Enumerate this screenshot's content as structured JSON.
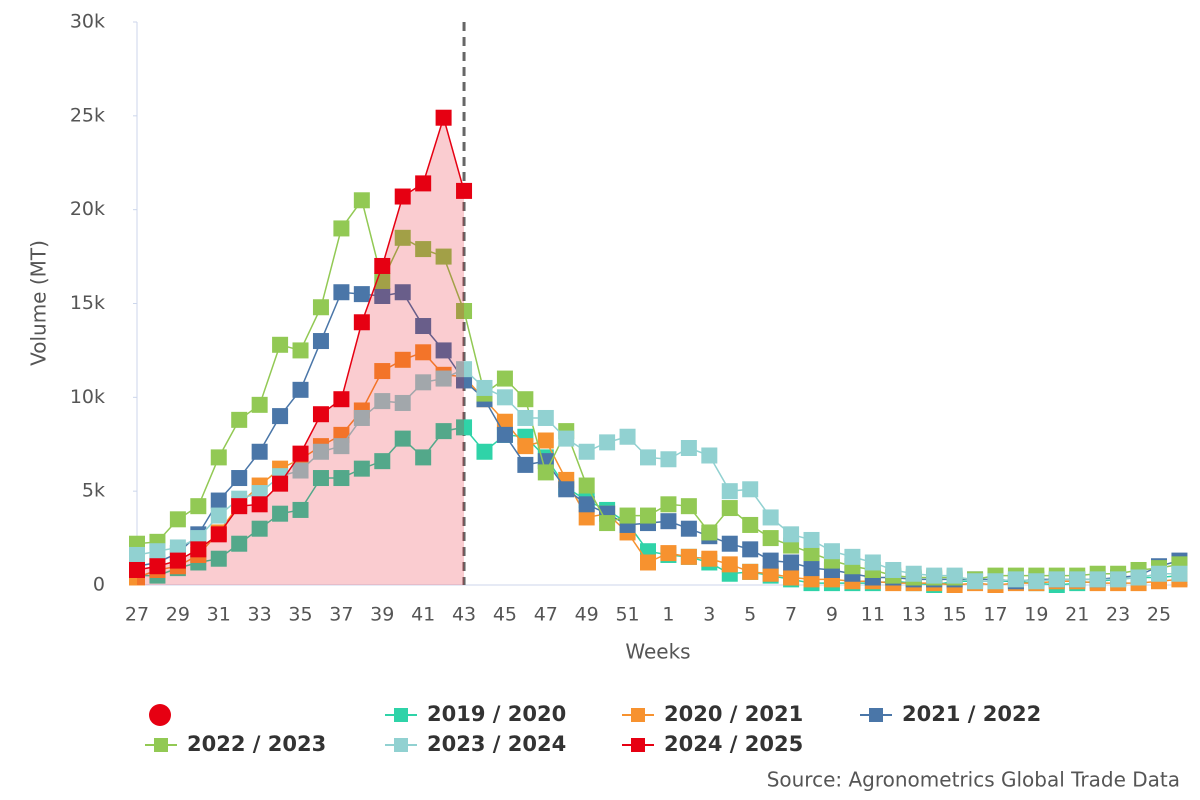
{
  "chart_data": {
    "type": "line",
    "x_label": "Weeks",
    "y_label": "Volume (MT)",
    "source": "Source: Agronometrics Global Trade Data",
    "categories": [
      27,
      null,
      29,
      null,
      31,
      null,
      33,
      null,
      35,
      null,
      37,
      null,
      39,
      null,
      41,
      null,
      43,
      null,
      45,
      null,
      47,
      null,
      49,
      null,
      51,
      null,
      1,
      null,
      3,
      null,
      5,
      null,
      7,
      null,
      9,
      null,
      11,
      null,
      13,
      null,
      15,
      null,
      17,
      null,
      19,
      null,
      21,
      null,
      23,
      null,
      25,
      null
    ],
    "ylim": [
      0,
      30000
    ],
    "yticks": [
      0,
      {
        "value": 5000,
        "label": "5k"
      },
      {
        "value": 10000,
        "label": "10k"
      },
      {
        "value": 15000,
        "label": "15k"
      },
      {
        "value": 20000,
        "label": "20k"
      },
      {
        "value": 25000,
        "label": "25k"
      },
      {
        "value": 30000,
        "label": "30k"
      }
    ],
    "grid": false,
    "legend": "bottom",
    "series": [
      {
        "name": "2019 / 2020",
        "color": "#2fd3a8",
        "values": [
          500,
          500,
          900,
          1200,
          1400,
          2200,
          3000,
          3800,
          4000,
          5700,
          5700,
          6200,
          6600,
          7800,
          6800,
          8200,
          8400,
          7100,
          8000,
          7900,
          6800,
          5200,
          4500,
          4000,
          3300,
          1800,
          1600,
          1500,
          1200,
          600,
          700,
          500,
          300,
          100,
          100,
          100,
          100,
          200,
          100,
          0,
          200,
          200,
          200,
          200,
          100,
          0,
          100,
          200,
          300,
          400,
          400,
          500
        ]
      },
      {
        "name": "2020 / 2021",
        "color": "#f7922f",
        "values": [
          400,
          800,
          1000,
          1600,
          2800,
          4300,
          5300,
          6200,
          6700,
          7400,
          8000,
          9300,
          11400,
          12000,
          12400,
          11200,
          11100,
          9900,
          8700,
          7400,
          7700,
          5600,
          3600,
          3800,
          2800,
          1200,
          1700,
          1500,
          1400,
          1100,
          700,
          600,
          400,
          300,
          300,
          200,
          200,
          100,
          100,
          100,
          0,
          100,
          0,
          100,
          100,
          200,
          200,
          100,
          100,
          100,
          200,
          300
        ]
      },
      {
        "name": "2021 / 2022",
        "color": "#4a76a8",
        "values": [
          1000,
          1200,
          1700,
          2700,
          4500,
          5700,
          7100,
          9000,
          10400,
          13000,
          15600,
          15500,
          15400,
          15600,
          13800,
          12500,
          10900,
          9900,
          8000,
          6400,
          6600,
          5100,
          4300,
          3800,
          3200,
          3300,
          3400,
          3000,
          2600,
          2200,
          1900,
          1300,
          1200,
          900,
          800,
          600,
          400,
          400,
          300,
          300,
          300,
          300,
          300,
          200,
          300,
          300,
          300,
          300,
          400,
          500,
          1000,
          1300
        ]
      },
      {
        "name": "2022 / 2023",
        "color": "#92c954",
        "values": [
          2200,
          2300,
          3500,
          4200,
          6800,
          8800,
          9600,
          12800,
          12500,
          14800,
          19000,
          20500,
          16200,
          18500,
          17900,
          17500,
          14600,
          10200,
          11000,
          9900,
          6000,
          8200,
          5300,
          3300,
          3700,
          3700,
          4300,
          4200,
          2800,
          4100,
          3200,
          2500,
          2100,
          1700,
          1300,
          1000,
          800,
          500,
          400,
          400,
          400,
          300,
          500,
          500,
          500,
          500,
          500,
          600,
          600,
          800,
          900,
          1100
        ]
      },
      {
        "name": "2023 / 2024",
        "color": "#91d1d1",
        "values": [
          1600,
          1800,
          2000,
          2500,
          3700,
          4600,
          4900,
          5800,
          6100,
          7100,
          7400,
          8900,
          9800,
          9700,
          10800,
          11000,
          11500,
          10500,
          10000,
          8900,
          8900,
          7800,
          7100,
          7600,
          7900,
          6800,
          6700,
          7300,
          6900,
          5000,
          5100,
          3600,
          2700,
          2400,
          1800,
          1500,
          1200,
          800,
          600,
          500,
          500,
          200,
          200,
          300,
          200,
          300,
          300,
          300,
          300,
          400,
          600,
          600
        ]
      },
      {
        "name": "2024 / 2025",
        "color": "#e60012",
        "area": true,
        "values": [
          800,
          1000,
          1300,
          1900,
          2700,
          4200,
          4300,
          5400,
          7000,
          9100,
          9900,
          14000,
          17000,
          20700,
          21400,
          24900,
          21000,
          null,
          null,
          null,
          null,
          null,
          null,
          null,
          null,
          null,
          null,
          null,
          null,
          null,
          null,
          null,
          null,
          null,
          null,
          null,
          null,
          null,
          null,
          null,
          null,
          null,
          null,
          null,
          null,
          null,
          null,
          null,
          null,
          null,
          null,
          null
        ]
      }
    ]
  }
}
